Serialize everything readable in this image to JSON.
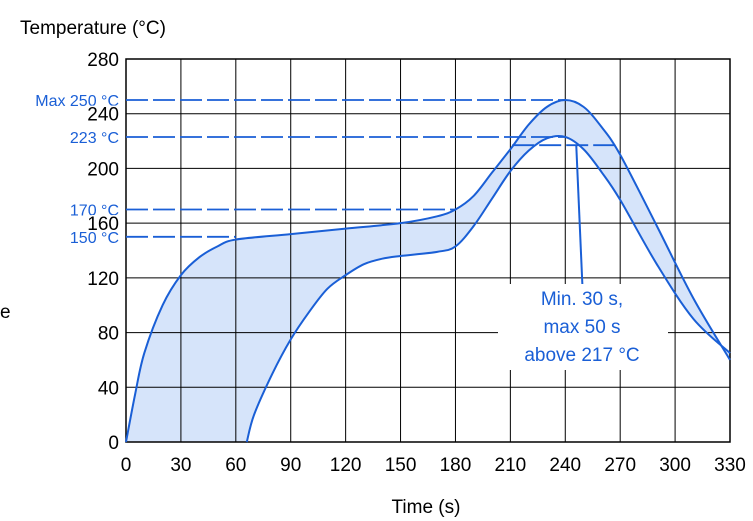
{
  "chart_data": {
    "type": "area",
    "ylabel": "Temperature (°C)",
    "xlabel": "Time (s)",
    "xlim": [
      0,
      330
    ],
    "ylim": [
      0,
      280
    ],
    "x_ticks": [
      0,
      30,
      60,
      90,
      120,
      150,
      180,
      210,
      240,
      270,
      300,
      330
    ],
    "y_ticks": [
      0,
      40,
      80,
      120,
      160,
      200,
      240,
      280
    ],
    "grid": true,
    "colors": {
      "curve": "#1a5fd6",
      "fill": "#d6e4fa",
      "grid": "#000000"
    },
    "series": [
      {
        "role": "upper",
        "points": [
          [
            0,
            0
          ],
          [
            5,
            35
          ],
          [
            10,
            65
          ],
          [
            20,
            100
          ],
          [
            30,
            122
          ],
          [
            40,
            135
          ],
          [
            50,
            143
          ],
          [
            60,
            148
          ],
          [
            90,
            152
          ],
          [
            120,
            156
          ],
          [
            150,
            160
          ],
          [
            170,
            165
          ],
          [
            180,
            170
          ],
          [
            190,
            180
          ],
          [
            200,
            197
          ],
          [
            210,
            214
          ],
          [
            220,
            232
          ],
          [
            230,
            245
          ],
          [
            240,
            250
          ],
          [
            250,
            245
          ],
          [
            260,
            230
          ],
          [
            270,
            210
          ],
          [
            290,
            158
          ],
          [
            310,
            105
          ],
          [
            330,
            60
          ]
        ]
      },
      {
        "role": "lower",
        "points": [
          [
            66,
            0
          ],
          [
            70,
            20
          ],
          [
            80,
            50
          ],
          [
            90,
            75
          ],
          [
            100,
            95
          ],
          [
            110,
            112
          ],
          [
            120,
            122
          ],
          [
            130,
            130
          ],
          [
            140,
            134
          ],
          [
            150,
            136
          ],
          [
            170,
            139
          ],
          [
            180,
            143
          ],
          [
            190,
            158
          ],
          [
            200,
            178
          ],
          [
            210,
            198
          ],
          [
            220,
            213
          ],
          [
            230,
            222
          ],
          [
            240,
            223
          ],
          [
            250,
            214
          ],
          [
            260,
            197
          ],
          [
            270,
            177
          ],
          [
            290,
            130
          ],
          [
            310,
            90
          ],
          [
            330,
            65
          ]
        ]
      }
    ],
    "reference_lines": [
      {
        "label": "Max 250 °C",
        "y": 250,
        "x_end": 240
      },
      {
        "label": "223 °C",
        "y": 223,
        "x_end": 240
      },
      {
        "label": "170 °C",
        "y": 170,
        "x_end": 180
      },
      {
        "label": "150 °C",
        "y": 150,
        "x_end": 60
      },
      {
        "label": "",
        "y": 217,
        "x_start": 211,
        "x_end": 268
      }
    ],
    "annotation": {
      "lines": [
        "Min. 30 s,",
        "max 50 s",
        "above 217 °C"
      ],
      "pointer_from": [
        246,
        217
      ],
      "pointer_to": [
        250,
        95
      ]
    },
    "left_edge_fragment": "e"
  }
}
